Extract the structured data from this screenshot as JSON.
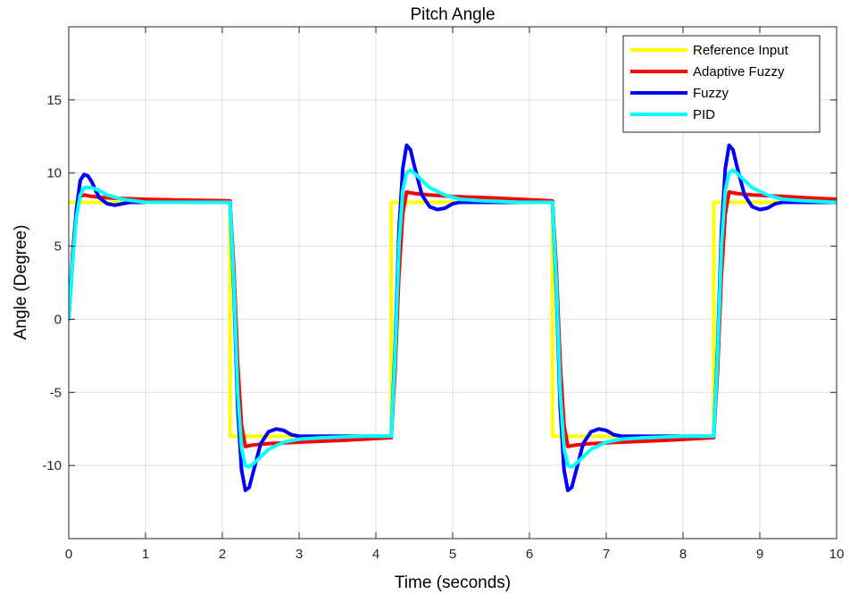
{
  "chart_data": {
    "type": "line",
    "title": "Pitch Angle",
    "xlabel": "Time (seconds)",
    "ylabel": "Angle (Degree)",
    "xlim": [
      0,
      10
    ],
    "ylim": [
      -15,
      20
    ],
    "xticks": [
      0,
      1,
      2,
      3,
      4,
      5,
      6,
      7,
      8,
      9,
      10
    ],
    "yticks": [
      -10,
      -5,
      0,
      5,
      10,
      15
    ],
    "grid": true,
    "legend_position": "top-right",
    "series": [
      {
        "name": "Reference Input",
        "color": "#FFFF00",
        "x": [
          0,
          0.001,
          2.1,
          2.1,
          4.2,
          4.2,
          6.3,
          6.3,
          8.4,
          8.4,
          10
        ],
        "y": [
          8,
          8,
          8,
          -8,
          -8,
          8,
          8,
          -8,
          -8,
          8,
          8
        ]
      },
      {
        "name": "Adaptive Fuzzy",
        "color": "#FF0000",
        "x": [
          0,
          0.05,
          0.1,
          0.15,
          0.2,
          0.3,
          0.5,
          1.0,
          1.5,
          2.1,
          2.15,
          2.2,
          2.25,
          2.3,
          2.4,
          2.6,
          3.0,
          3.5,
          4.2,
          4.25,
          4.3,
          4.35,
          4.4,
          4.5,
          4.7,
          5.0,
          5.5,
          6.3,
          6.35,
          6.4,
          6.45,
          6.5,
          6.6,
          6.8,
          7.2,
          7.7,
          8.4,
          8.45,
          8.5,
          8.55,
          8.6,
          8.7,
          8.9,
          9.3,
          10
        ],
        "y": [
          0,
          4.5,
          7.5,
          8.4,
          8.5,
          8.4,
          8.3,
          8.2,
          8.15,
          8.1,
          3.5,
          -3.0,
          -7.2,
          -8.7,
          -8.6,
          -8.5,
          -8.4,
          -8.3,
          -8.1,
          -3.5,
          3.0,
          7.2,
          8.7,
          8.6,
          8.5,
          8.4,
          8.3,
          8.1,
          3.5,
          -3.0,
          -7.2,
          -8.7,
          -8.6,
          -8.5,
          -8.4,
          -8.3,
          -8.1,
          -3.5,
          3.0,
          7.2,
          8.7,
          8.6,
          8.5,
          8.4,
          8.2
        ]
      },
      {
        "name": "Fuzzy",
        "color": "#0000FF",
        "x": [
          0,
          0.05,
          0.1,
          0.15,
          0.2,
          0.25,
          0.3,
          0.35,
          0.4,
          0.5,
          0.6,
          0.7,
          0.8,
          1.0,
          1.5,
          2.1,
          2.15,
          2.2,
          2.25,
          2.3,
          2.35,
          2.4,
          2.45,
          2.5,
          2.6,
          2.7,
          2.8,
          2.9,
          3.0,
          3.2,
          3.6,
          4.2,
          4.25,
          4.3,
          4.35,
          4.4,
          4.45,
          4.5,
          4.55,
          4.6,
          4.7,
          4.8,
          4.9,
          5.0,
          5.1,
          5.3,
          5.7,
          6.3,
          6.35,
          6.4,
          6.45,
          6.5,
          6.55,
          6.6,
          6.65,
          6.7,
          6.8,
          6.9,
          7.0,
          7.1,
          7.2,
          7.4,
          7.8,
          8.4,
          8.45,
          8.5,
          8.55,
          8.6,
          8.65,
          8.7,
          8.75,
          8.8,
          8.9,
          9.0,
          9.1,
          9.2,
          9.3,
          9.5,
          10
        ],
        "y": [
          0,
          4.0,
          7.5,
          9.5,
          9.9,
          9.8,
          9.4,
          8.8,
          8.3,
          7.9,
          7.8,
          7.9,
          8.0,
          8.0,
          8.0,
          8.0,
          2.0,
          -6.0,
          -10.3,
          -11.7,
          -11.5,
          -10.5,
          -9.5,
          -8.5,
          -7.7,
          -7.5,
          -7.6,
          -7.9,
          -8.0,
          -8.0,
          -8.0,
          -8.0,
          -2.0,
          6.0,
          10.3,
          11.9,
          11.6,
          10.5,
          9.5,
          8.5,
          7.7,
          7.5,
          7.6,
          7.9,
          8.0,
          8.0,
          8.0,
          8.0,
          2.0,
          -6.0,
          -10.3,
          -11.7,
          -11.5,
          -10.5,
          -9.5,
          -8.5,
          -7.7,
          -7.5,
          -7.6,
          -7.9,
          -8.0,
          -8.0,
          -8.0,
          -8.0,
          -2.0,
          6.0,
          10.3,
          11.9,
          11.6,
          10.5,
          9.5,
          8.5,
          7.7,
          7.5,
          7.6,
          7.9,
          8.0,
          8.0,
          8.0
        ]
      },
      {
        "name": "PID",
        "color": "#00FFFF",
        "x": [
          0,
          0.05,
          0.1,
          0.15,
          0.2,
          0.3,
          0.4,
          0.5,
          0.7,
          1.0,
          1.5,
          2.1,
          2.15,
          2.2,
          2.25,
          2.3,
          2.35,
          2.4,
          2.5,
          2.6,
          2.8,
          3.0,
          3.3,
          3.8,
          4.2,
          4.25,
          4.3,
          4.35,
          4.4,
          4.45,
          4.5,
          4.6,
          4.7,
          4.9,
          5.1,
          5.4,
          5.9,
          6.3,
          6.35,
          6.4,
          6.45,
          6.5,
          6.55,
          6.6,
          6.7,
          6.8,
          7.0,
          7.2,
          7.5,
          8.0,
          8.4,
          8.45,
          8.5,
          8.55,
          8.6,
          8.65,
          8.7,
          8.8,
          8.9,
          9.1,
          9.3,
          9.6,
          10
        ],
        "y": [
          0,
          4.0,
          7.0,
          8.5,
          9.0,
          9.0,
          8.8,
          8.5,
          8.2,
          8.0,
          8.0,
          8.0,
          2.5,
          -5.0,
          -8.8,
          -10.0,
          -10.1,
          -9.9,
          -9.4,
          -8.9,
          -8.4,
          -8.2,
          -8.1,
          -8.0,
          -8.0,
          -2.5,
          5.0,
          8.8,
          10.0,
          10.2,
          10.0,
          9.5,
          9.0,
          8.5,
          8.2,
          8.1,
          8.0,
          8.0,
          2.5,
          -5.0,
          -8.8,
          -10.0,
          -10.1,
          -9.9,
          -9.4,
          -8.9,
          -8.4,
          -8.2,
          -8.1,
          -8.0,
          -8.0,
          -2.5,
          5.0,
          8.8,
          10.0,
          10.2,
          10.0,
          9.5,
          9.0,
          8.5,
          8.2,
          8.1,
          8.0
        ]
      }
    ]
  }
}
